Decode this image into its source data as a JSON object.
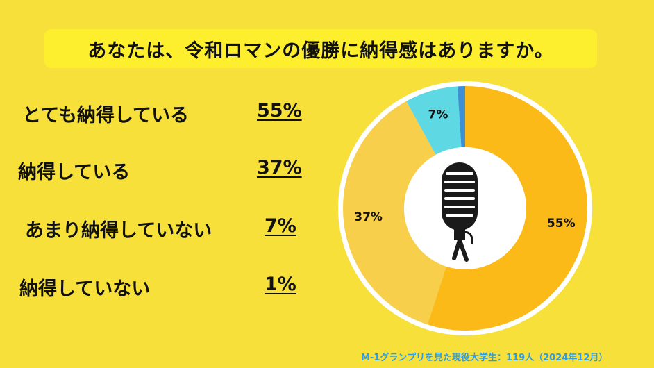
{
  "title": "あなたは、令和ロマンの優勝に納得感はありますか。",
  "chart_data": {
    "type": "pie",
    "donut": true,
    "slices": [
      {
        "label": "とても納得している",
        "value": 55,
        "pct_text": "55%",
        "color": "#FBBA18"
      },
      {
        "label": "納得している",
        "value": 37,
        "pct_text": "37%",
        "color": "#F8CF4A"
      },
      {
        "label": "あまり納得していない",
        "value": 7,
        "pct_text": "7%",
        "color": "#5ED9E4"
      },
      {
        "label": "納得していない",
        "value": 1,
        "pct_text": "1%",
        "color": "#3D8FD6"
      }
    ],
    "center_icon": "microphone-icon",
    "ring_border_color": "#FFFFFF"
  },
  "source": "M-1グランプリを見た現役大学生：119人（2024年12月）"
}
